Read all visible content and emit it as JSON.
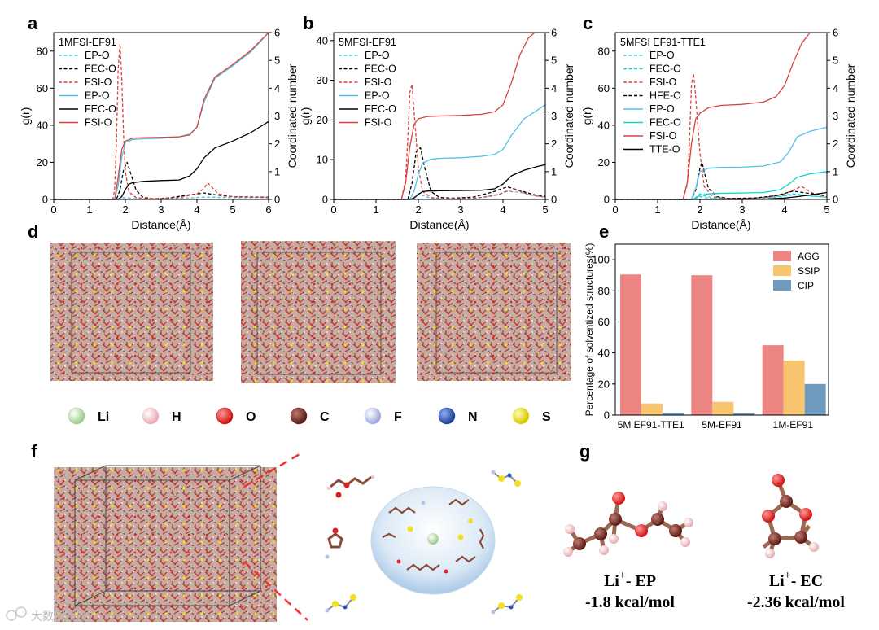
{
  "panel_labels": {
    "a": "a",
    "b": "b",
    "c": "c",
    "d": "d",
    "e": "e",
    "f": "f",
    "g": "g"
  },
  "chart_data": [
    {
      "id": "a",
      "type": "line",
      "title": "1MFSI-EF91",
      "xlabel": "Distance(Å)",
      "ylabel": "g(r)",
      "y2label": "Coordinated number",
      "xlim": [
        0,
        6
      ],
      "ylim": [
        0,
        90
      ],
      "y2lim": [
        0,
        6
      ],
      "xticks": [
        0,
        1,
        2,
        3,
        4,
        5,
        6
      ],
      "yticks": [
        0,
        20,
        40,
        60,
        80
      ],
      "y2ticks": [
        0,
        1,
        2,
        3,
        4,
        5,
        6
      ],
      "series": [
        {
          "name": "EP-O",
          "axis": "left",
          "style": "dash",
          "color": "#4fc3e8",
          "x": [
            0,
            1.7,
            1.8,
            1.9,
            2.0,
            2.1,
            2.3,
            2.6,
            3.0,
            3.5,
            4.0,
            4.3,
            4.5,
            5.0,
            6.0
          ],
          "y": [
            0,
            0,
            0.3,
            0.8,
            1.0,
            0.8,
            0.3,
            0.1,
            0.2,
            0.6,
            1.0,
            1.3,
            1.2,
            1.0,
            1.0
          ]
        },
        {
          "name": "FEC-O",
          "axis": "left",
          "style": "dash",
          "color": "#000000",
          "x": [
            0,
            1.75,
            1.85,
            1.95,
            2.05,
            2.15,
            2.3,
            2.5,
            2.8,
            3.2,
            3.8,
            4.2,
            4.5,
            5.0,
            6.0
          ],
          "y": [
            0,
            0,
            5,
            16,
            20,
            14,
            5,
            1,
            0.3,
            0.8,
            2.5,
            3.5,
            2.5,
            1.5,
            1.2
          ]
        },
        {
          "name": "FSI-O",
          "axis": "left",
          "style": "dash",
          "color": "#d9443e",
          "x": [
            0,
            1.65,
            1.7,
            1.75,
            1.8,
            1.85,
            1.9,
            1.95,
            2.0,
            2.1,
            2.3,
            2.6,
            3.0,
            3.5,
            4.0,
            4.2,
            4.3,
            4.4,
            4.6,
            5.0,
            6.0
          ],
          "y": [
            0,
            0,
            5,
            30,
            70,
            84,
            65,
            35,
            15,
            4,
            1,
            0.5,
            0.5,
            1,
            3,
            6,
            9,
            7,
            3,
            1.5,
            1
          ]
        },
        {
          "name": "EP-O",
          "axis": "right",
          "style": "solid",
          "color": "#4fc3e8",
          "x": [
            0,
            1.7,
            1.8,
            1.9,
            2.0,
            2.2,
            2.5,
            3.0,
            3.5,
            3.8,
            4.0,
            4.2,
            4.5,
            5.0,
            5.5,
            6.0
          ],
          "y": [
            0,
            0,
            0.5,
            1.5,
            2.05,
            2.15,
            2.18,
            2.2,
            2.25,
            2.35,
            2.6,
            3.5,
            4.35,
            4.8,
            5.3,
            6.0
          ]
        },
        {
          "name": "FEC-O",
          "axis": "right",
          "style": "solid",
          "color": "#000000",
          "x": [
            0,
            1.8,
            1.9,
            2.0,
            2.1,
            2.2,
            2.5,
            3.0,
            3.5,
            3.8,
            4.0,
            4.2,
            4.5,
            5.0,
            5.5,
            6.0
          ],
          "y": [
            0,
            0,
            0.1,
            0.35,
            0.55,
            0.6,
            0.65,
            0.68,
            0.7,
            0.85,
            1.1,
            1.5,
            1.85,
            2.1,
            2.4,
            2.8
          ]
        },
        {
          "name": "FSI-O",
          "axis": "right",
          "style": "solid",
          "color": "#d9443e",
          "x": [
            0,
            1.7,
            1.8,
            1.9,
            2.0,
            2.2,
            2.5,
            3.0,
            3.5,
            3.8,
            4.0,
            4.2,
            4.5,
            5.0,
            5.5,
            6.0
          ],
          "y": [
            0,
            0,
            0.8,
            1.8,
            2.1,
            2.2,
            2.22,
            2.23,
            2.25,
            2.32,
            2.6,
            3.6,
            4.4,
            4.85,
            5.35,
            6.0
          ]
        }
      ]
    },
    {
      "id": "b",
      "type": "line",
      "title": "5MFSI-EF91",
      "xlabel": "Distance(Å)",
      "ylabel": "g(r)",
      "y2label": "Coordinated number",
      "xlim": [
        0,
        5
      ],
      "ylim": [
        0,
        42
      ],
      "y2lim": [
        0,
        6
      ],
      "xticks": [
        0,
        1,
        2,
        3,
        4,
        5
      ],
      "yticks": [
        0,
        10,
        20,
        30,
        40
      ],
      "y2ticks": [
        0,
        1,
        2,
        3,
        4,
        5,
        6
      ],
      "series": [
        {
          "name": "EP-O",
          "axis": "left",
          "style": "dash",
          "color": "#4fc3e8",
          "x": [
            0,
            1.8,
            1.9,
            2.0,
            2.1,
            2.3,
            2.7,
            3.3,
            3.8,
            4.1,
            4.4,
            4.8,
            5.0
          ],
          "y": [
            0,
            0,
            0.5,
            1.5,
            1.0,
            0.3,
            0.1,
            0.2,
            1.0,
            2.0,
            1.8,
            0.8,
            0.6
          ]
        },
        {
          "name": "FEC-O",
          "axis": "left",
          "style": "dash",
          "color": "#000000",
          "x": [
            0,
            1.75,
            1.85,
            1.95,
            2.05,
            2.15,
            2.3,
            2.5,
            2.8,
            3.3,
            3.8,
            4.1,
            4.4,
            4.8,
            5.0
          ],
          "y": [
            0,
            0,
            4,
            12,
            13,
            8,
            2,
            0.5,
            0.3,
            0.6,
            2.0,
            3.2,
            2.2,
            1.0,
            0.8
          ]
        },
        {
          "name": "FSI-O",
          "axis": "left",
          "style": "dash",
          "color": "#d9443e",
          "x": [
            0,
            1.6,
            1.7,
            1.75,
            1.8,
            1.85,
            1.9,
            2.0,
            2.1,
            2.3,
            2.6,
            3.0,
            3.5,
            3.9,
            4.1,
            4.3,
            4.6,
            5.0
          ],
          "y": [
            0,
            0,
            5,
            15,
            27,
            29,
            22,
            8,
            2,
            0.5,
            0.2,
            0.2,
            0.5,
            1.2,
            2.2,
            2.5,
            1.2,
            0.6
          ]
        },
        {
          "name": "EP-O",
          "axis": "right",
          "style": "solid",
          "color": "#4fc3e8",
          "x": [
            0,
            1.8,
            1.9,
            2.0,
            2.1,
            2.3,
            2.6,
            3.0,
            3.5,
            3.8,
            4.0,
            4.2,
            4.5,
            4.8,
            5.0
          ],
          "y": [
            0,
            0,
            0.3,
            0.9,
            1.3,
            1.45,
            1.48,
            1.5,
            1.55,
            1.62,
            1.8,
            2.3,
            2.9,
            3.2,
            3.4
          ]
        },
        {
          "name": "FEC-O",
          "axis": "right",
          "style": "solid",
          "color": "#000000",
          "x": [
            0,
            1.8,
            1.9,
            2.0,
            2.1,
            2.2,
            2.5,
            3.0,
            3.5,
            3.8,
            4.0,
            4.2,
            4.5,
            4.8,
            5.0
          ],
          "y": [
            0,
            0,
            0.05,
            0.18,
            0.28,
            0.3,
            0.31,
            0.32,
            0.33,
            0.38,
            0.55,
            0.85,
            1.05,
            1.18,
            1.25
          ]
        },
        {
          "name": "FSI-O",
          "axis": "right",
          "style": "solid",
          "color": "#d9443e",
          "x": [
            0,
            1.6,
            1.7,
            1.8,
            1.9,
            2.0,
            2.2,
            2.5,
            3.0,
            3.5,
            3.8,
            4.0,
            4.2,
            4.4,
            4.6,
            4.75
          ],
          "y": [
            0,
            0,
            0.6,
            1.9,
            2.7,
            2.9,
            2.98,
            3.0,
            3.02,
            3.06,
            3.15,
            3.4,
            4.2,
            5.2,
            5.8,
            6.0
          ]
        }
      ]
    },
    {
      "id": "c",
      "type": "line",
      "title": "5MFSI EF91-TTE1",
      "xlabel": "Distance(Å)",
      "ylabel": "g(r)",
      "y2label": "Coordinated number",
      "xlim": [
        0,
        5
      ],
      "ylim": [
        0,
        90
      ],
      "y2lim": [
        0,
        6
      ],
      "xticks": [
        0,
        1,
        2,
        3,
        4,
        5
      ],
      "yticks": [
        0,
        20,
        40,
        60,
        80
      ],
      "y2ticks": [
        0,
        1,
        2,
        3,
        4,
        5,
        6
      ],
      "series": [
        {
          "name": "EP-O",
          "axis": "left",
          "style": "dash",
          "color": "#4fc3e8",
          "x": [
            0,
            1.8,
            1.9,
            2.0,
            2.1,
            2.3,
            2.6,
            3.2,
            3.8,
            4.2,
            4.5,
            5.0
          ],
          "y": [
            0,
            0,
            0.5,
            1.5,
            1.0,
            0.5,
            0.2,
            0.3,
            1.2,
            2.5,
            2.0,
            1.2
          ]
        },
        {
          "name": "FEC-O",
          "axis": "left",
          "style": "dash",
          "color": "#17d0d0",
          "x": [
            0,
            1.8,
            1.9,
            2.0,
            2.1,
            2.3,
            2.6,
            3.2,
            3.8,
            4.2,
            4.5,
            5.0
          ],
          "y": [
            0,
            0,
            1.0,
            3.0,
            2.0,
            0.8,
            0.3,
            0.5,
            1.5,
            3.0,
            2.2,
            1.2
          ]
        },
        {
          "name": "FSI-O",
          "axis": "left",
          "style": "dash",
          "color": "#d9443e",
          "x": [
            0,
            1.6,
            1.7,
            1.75,
            1.8,
            1.85,
            1.9,
            2.0,
            2.1,
            2.3,
            2.6,
            3.0,
            3.5,
            4.0,
            4.2,
            4.4,
            4.7,
            5.0
          ],
          "y": [
            0,
            0,
            8,
            30,
            62,
            68,
            55,
            25,
            7,
            1.5,
            0.5,
            0.5,
            1,
            3,
            5,
            7,
            3,
            1.5
          ]
        },
        {
          "name": "HFE-O",
          "axis": "left",
          "style": "dash",
          "color": "#000000",
          "x": [
            0,
            1.8,
            1.9,
            2.0,
            2.05,
            2.1,
            2.2,
            2.4,
            2.7,
            3.3,
            3.8,
            4.2,
            4.5,
            5.0
          ],
          "y": [
            0,
            0,
            5,
            17,
            20,
            15,
            6,
            1.5,
            0.5,
            0.8,
            2.0,
            4.5,
            3.5,
            2.0
          ]
        },
        {
          "name": "EP-O",
          "axis": "right",
          "style": "solid",
          "color": "#4fc3e8",
          "x": [
            0,
            1.8,
            1.9,
            2.0,
            2.2,
            2.5,
            3.0,
            3.5,
            3.9,
            4.1,
            4.3,
            4.6,
            5.0
          ],
          "y": [
            0,
            0,
            0.4,
            1.0,
            1.12,
            1.15,
            1.16,
            1.2,
            1.35,
            1.7,
            2.25,
            2.45,
            2.6
          ]
        },
        {
          "name": "FEC-O",
          "axis": "right",
          "style": "solid",
          "color": "#17d0d0",
          "x": [
            0,
            1.8,
            1.9,
            2.0,
            2.2,
            2.5,
            3.0,
            3.5,
            3.9,
            4.1,
            4.3,
            4.6,
            5.0
          ],
          "y": [
            0,
            0,
            0.05,
            0.15,
            0.2,
            0.22,
            0.23,
            0.25,
            0.35,
            0.55,
            0.8,
            0.92,
            1.0
          ]
        },
        {
          "name": "FSI-O",
          "axis": "right",
          "style": "solid",
          "color": "#d9443e",
          "x": [
            0,
            1.6,
            1.7,
            1.8,
            1.9,
            2.0,
            2.2,
            2.5,
            3.0,
            3.5,
            3.8,
            4.0,
            4.2,
            4.4,
            4.6
          ],
          "y": [
            0,
            0,
            0.6,
            2.0,
            2.9,
            3.1,
            3.3,
            3.38,
            3.42,
            3.5,
            3.7,
            4.1,
            4.9,
            5.6,
            6.0
          ]
        },
        {
          "name": "TTE-O",
          "axis": "right",
          "style": "solid",
          "color": "#000000",
          "x": [
            0,
            3.0,
            3.5,
            4.0,
            4.3,
            4.6,
            5.0
          ],
          "y": [
            0,
            0,
            0.01,
            0.05,
            0.1,
            0.16,
            0.25
          ]
        }
      ]
    },
    {
      "id": "e",
      "type": "bar",
      "title": "",
      "xlabel": "",
      "ylabel": "Percentage of solventized structures(%)",
      "ylim": [
        0,
        110
      ],
      "yticks": [
        0,
        20,
        40,
        60,
        80,
        100
      ],
      "categories": [
        "5M EF91-TTE1",
        "5M-EF91",
        "1M-EF91"
      ],
      "series": [
        {
          "name": "AGG",
          "color": "#ec8582",
          "values": [
            90.5,
            90,
            45
          ]
        },
        {
          "name": "SSIP",
          "color": "#f8c46d",
          "values": [
            7.5,
            8.5,
            35
          ]
        },
        {
          "name": "CIP",
          "color": "#6e9bbd",
          "values": [
            1.5,
            1.2,
            20
          ]
        }
      ],
      "legend": "top-right"
    }
  ],
  "elements": [
    {
      "symbol": "Li",
      "color": "#9ccc8a"
    },
    {
      "symbol": "H",
      "color": "#f2c2c6"
    },
    {
      "symbol": "O",
      "color": "#e01818"
    },
    {
      "symbol": "C",
      "color": "#7a2a24"
    },
    {
      "symbol": "F",
      "color": "#b4c0ea"
    },
    {
      "symbol": "N",
      "color": "#2555b8"
    },
    {
      "symbol": "S",
      "color": "#f2e21c"
    }
  ],
  "panel_g": {
    "ep": {
      "title_base": "Li",
      "title_sup": "+",
      "title_rest": "- EP",
      "energy": "-1.8 kcal/mol"
    },
    "ec": {
      "title_base": "Li",
      "title_sup": "+",
      "title_rest": "- EC",
      "energy": "-2.36 kcal/mol"
    }
  },
  "watermark": "大数据视觉"
}
